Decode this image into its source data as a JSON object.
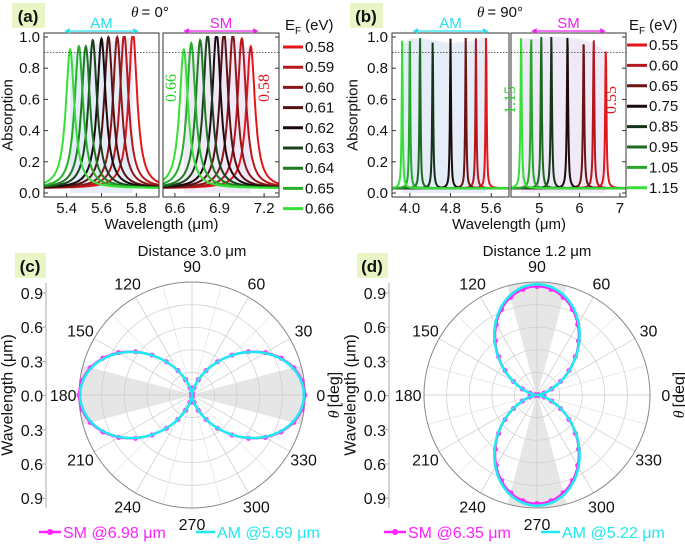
{
  "chart_data": [
    {
      "panel": "(a)",
      "type": "line",
      "title_symbol": "θ",
      "title": "= 0°",
      "ylabel": "Absorption",
      "xlabel": "Wavelength (μm)",
      "ylim": [
        0,
        1.0
      ],
      "yticks": [
        "0.0",
        "0.2",
        "0.4",
        "0.6",
        "0.8",
        "1.0"
      ],
      "reference_line": 0.9,
      "legend_title": {
        "main": "E",
        "sub": "F",
        "unit": "(eV)"
      },
      "annotations": {
        "low": "0.66",
        "high": "0.58"
      },
      "subplots": [
        {
          "label": "AM",
          "color": "#22e0f0",
          "xlim": [
            5.27,
            5.93
          ],
          "xticks": [
            "5.4",
            "5.6",
            "5.8"
          ],
          "width": 0.03,
          "shade": "#dfe8f8"
        },
        {
          "label": "SM",
          "color": "#ee22ee",
          "xlim": [
            6.52,
            7.3
          ],
          "xticks": [
            "6.6",
            "6.9",
            "7.2"
          ],
          "width": 0.035,
          "shade": "#ece4f6"
        }
      ],
      "series": [
        {
          "name": "0.58",
          "color": "#e3161b",
          "AM": [
            5.78,
            1.0
          ],
          "SM": [
            7.11,
            0.91
          ]
        },
        {
          "name": "0.59",
          "color": "#b5171c",
          "AM": [
            5.73,
            0.99
          ],
          "SM": [
            7.05,
            0.96
          ]
        },
        {
          "name": "0.60",
          "color": "#8a1818",
          "AM": [
            5.69,
            0.97
          ],
          "SM": [
            6.99,
            0.99
          ]
        },
        {
          "name": "0.61",
          "color": "#561212",
          "AM": [
            5.64,
            0.97
          ],
          "SM": [
            6.93,
            1.0
          ]
        },
        {
          "name": "0.62",
          "color": "#1a0c0c",
          "AM": [
            5.6,
            0.96
          ],
          "SM": [
            6.88,
            1.0
          ]
        },
        {
          "name": "0.63",
          "color": "#1d401d",
          "AM": [
            5.55,
            0.95
          ],
          "SM": [
            6.82,
            0.99
          ]
        },
        {
          "name": "0.64",
          "color": "#1f7a22",
          "AM": [
            5.51,
            0.91
          ],
          "SM": [
            6.77,
            0.95
          ]
        },
        {
          "name": "0.65",
          "color": "#25b02a",
          "AM": [
            5.47,
            0.91
          ],
          "SM": [
            6.71,
            0.93
          ]
        },
        {
          "name": "0.66",
          "color": "#36e036",
          "AM": [
            5.42,
            0.89
          ],
          "SM": [
            6.66,
            0.89
          ]
        }
      ]
    },
    {
      "panel": "(b)",
      "type": "line",
      "title_symbol": "θ",
      "title": "= 90°",
      "ylabel": "Absorption",
      "xlabel": "Wavelength (μm)",
      "ylim": [
        0,
        1.0
      ],
      "yticks": [
        "0.0",
        "0.2",
        "0.4",
        "0.6",
        "0.8",
        "1.0"
      ],
      "reference_line": 0.9,
      "legend_title": {
        "main": "E",
        "sub": "F",
        "unit": "(eV)"
      },
      "annotations": {
        "low": "1.15",
        "high": "0.55"
      },
      "subplots": [
        {
          "label": "AM",
          "color": "#22e0f0",
          "xlim": [
            3.65,
            5.95
          ],
          "xticks": [
            "4.0",
            "4.8",
            "5.6"
          ],
          "width": 0.012,
          "shade": "#dfe8f8"
        },
        {
          "label": "SM",
          "color": "#ee22ee",
          "xlim": [
            4.3,
            7.15
          ],
          "xticks": [
            "5",
            "6",
            "7"
          ],
          "width": 0.018,
          "shade": "#ece4f6"
        }
      ],
      "series": [
        {
          "name": "0.55",
          "color": "#e3161b",
          "AM": [
            5.5,
            1.0
          ],
          "SM": [
            6.65,
            0.91
          ]
        },
        {
          "name": "0.60",
          "color": "#b5171c",
          "AM": [
            5.3,
            0.98
          ],
          "SM": [
            6.35,
            0.96
          ]
        },
        {
          "name": "0.65",
          "color": "#6e1414",
          "AM": [
            5.1,
            0.97
          ],
          "SM": [
            6.1,
            0.98
          ]
        },
        {
          "name": "0.75",
          "color": "#1a0c0c",
          "AM": [
            4.8,
            0.96
          ],
          "SM": [
            5.7,
            1.0
          ]
        },
        {
          "name": "0.85",
          "color": "#17331a",
          "AM": [
            4.45,
            0.98
          ],
          "SM": [
            5.3,
            1.0
          ]
        },
        {
          "name": "0.95",
          "color": "#1c6a20",
          "AM": [
            4.2,
            0.99
          ],
          "SM": [
            5.05,
            0.99
          ]
        },
        {
          "name": "1.05",
          "color": "#25a82a",
          "AM": [
            4.0,
            0.99
          ],
          "SM": [
            4.8,
            0.99
          ]
        },
        {
          "name": "1.15",
          "color": "#36e036",
          "AM": [
            3.85,
            0.95
          ],
          "SM": [
            4.55,
            0.99
          ]
        }
      ]
    },
    {
      "panel": "(c)",
      "type": "polar",
      "title": "Distance 3.0 μm",
      "radial_label": "Wavelength (μm)",
      "radial_ticks": [
        "0.9",
        "0.6",
        "0.3",
        "0.0",
        "0.3",
        "0.6",
        "0.9"
      ],
      "angular_label_symbol": "θ",
      "angular_label": "[deg]",
      "angle_ticks": [
        "0",
        "30",
        "60",
        "90",
        "120",
        "150",
        "180",
        "210",
        "240",
        "270",
        "300",
        "330"
      ],
      "shaded_sectors_deg": [
        [
          -15,
          15
        ],
        [
          165,
          195
        ]
      ],
      "lobe_axis_deg": 0,
      "series": [
        {
          "name": "SM @6.98 μm",
          "color": "#ff22ff",
          "markers": true,
          "max_radius": 1.0
        },
        {
          "name": "AM @5.69 μm",
          "color": "#22e8f0",
          "markers": false,
          "max_radius": 0.99
        }
      ]
    },
    {
      "panel": "(d)",
      "type": "polar",
      "title": "Distance 1.2 μm",
      "radial_label": "Wavelength (μm)",
      "radial_ticks": [
        "0.9",
        "0.6",
        "0.3",
        "0.0",
        "0.3",
        "0.6",
        "0.9"
      ],
      "angular_label_symbol": "θ",
      "angular_label": "[deg]",
      "angle_ticks": [
        "0",
        "30",
        "60",
        "90",
        "120",
        "150",
        "180",
        "210",
        "240",
        "270",
        "300",
        "330"
      ],
      "shaded_sectors_deg": [
        [
          75,
          105
        ],
        [
          255,
          285
        ]
      ],
      "lobe_axis_deg": 90,
      "series": [
        {
          "name": "SM @6.35 μm",
          "color": "#ff22ff",
          "markers": true,
          "max_radius": 0.96
        },
        {
          "name": "AM @5.22 μm",
          "color": "#22e8f0",
          "markers": false,
          "max_radius": 0.98
        }
      ]
    }
  ]
}
